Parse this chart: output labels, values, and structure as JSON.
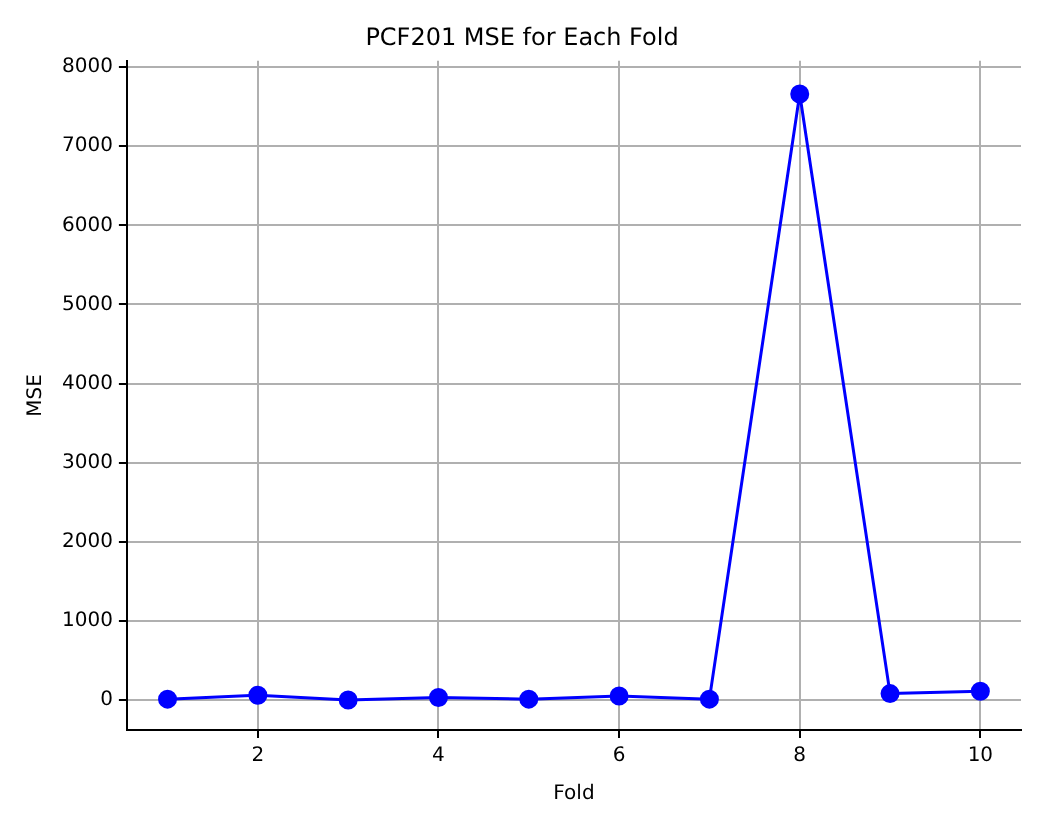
{
  "chart_data": {
    "type": "line",
    "title": "PCF201 MSE for Each Fold",
    "xlabel": "Fold",
    "ylabel": "MSE",
    "x": [
      1,
      2,
      3,
      4,
      5,
      6,
      7,
      8,
      9,
      10
    ],
    "series": [
      {
        "color": "#0000ff",
        "values": [
          10,
          60,
          0,
          30,
          10,
          50,
          10,
          7660,
          80,
          110
        ]
      }
    ],
    "xlim": [
      0.55,
      10.45
    ],
    "xticks": [
      2,
      4,
      6,
      8,
      10
    ],
    "ylim": [
      -380,
      8080
    ],
    "yticks": [
      0,
      1000,
      2000,
      3000,
      4000,
      5000,
      6000,
      7000,
      8000
    ],
    "grid": true,
    "marker": "circle",
    "line_style": "solid",
    "legend": false
  }
}
